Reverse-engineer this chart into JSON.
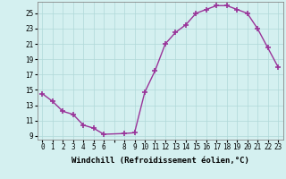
{
  "x": [
    0,
    1,
    2,
    3,
    4,
    5,
    6,
    8,
    9,
    10,
    11,
    12,
    13,
    14,
    15,
    16,
    17,
    18,
    19,
    20,
    21,
    22,
    23
  ],
  "y": [
    14.5,
    13.5,
    12.2,
    11.8,
    10.4,
    10.0,
    9.2,
    9.3,
    9.4,
    14.7,
    17.5,
    21.0,
    22.5,
    23.5,
    25.0,
    25.5,
    26.0,
    26.0,
    25.5,
    25.0,
    23.0,
    20.5,
    18.0
  ],
  "line_color": "#993399",
  "marker": "+",
  "marker_size": 4,
  "marker_linewidth": 1.2,
  "line_width": 1.0,
  "bg_color": "#d4f0f0",
  "grid_color": "#b0d8d8",
  "xlabel": "Windchill (Refroidissement éolien,°C)",
  "xlabel_fontsize": 6.5,
  "ylabel_ticks": [
    9,
    11,
    13,
    15,
    17,
    19,
    21,
    23,
    25
  ],
  "xtick_labels": [
    "0",
    "1",
    "2",
    "3",
    "4",
    "5",
    "6",
    "",
    "8",
    "9",
    "10",
    "11",
    "12",
    "13",
    "14",
    "15",
    "16",
    "17",
    "18",
    "19",
    "20",
    "21",
    "22",
    "23"
  ],
  "xlim": [
    -0.5,
    23.5
  ],
  "ylim": [
    8.5,
    26.5
  ],
  "tick_fontsize": 5.5,
  "spine_color": "#993399"
}
